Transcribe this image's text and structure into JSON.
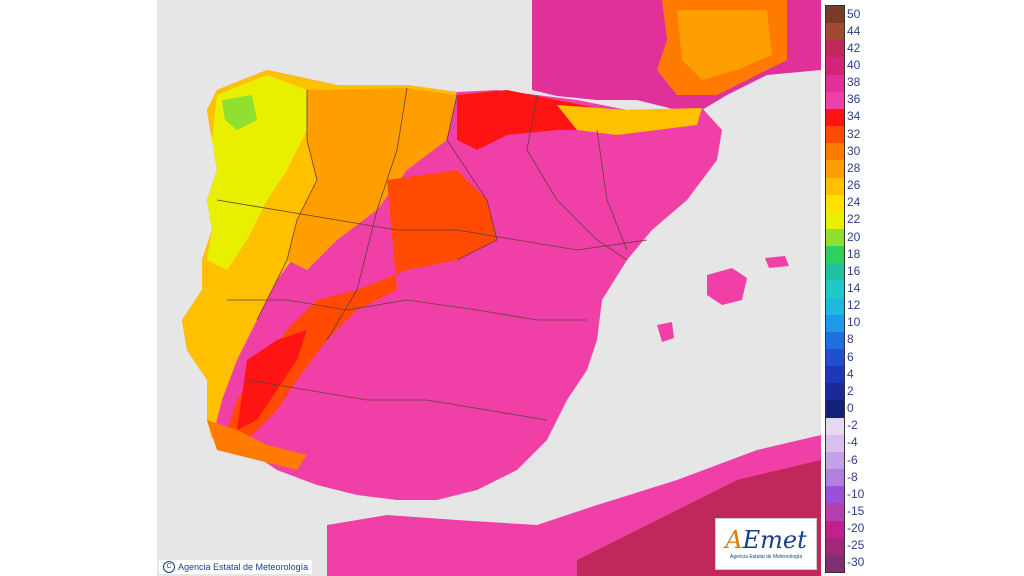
{
  "map": {
    "copyright_text": "Agencia Estatal de Meteorología",
    "logo": {
      "word_a": "A",
      "word_rest": "Emet",
      "subtitle": "Agencia Estatal de Meteorología"
    },
    "colors": {
      "sea": "#e6e6e6",
      "border": "#6a3b3b"
    }
  },
  "legend": {
    "items": [
      {
        "label": "50",
        "color": "#7a3a28"
      },
      {
        "label": "44",
        "color": "#a04a32"
      },
      {
        "label": "42",
        "color": "#c0285a"
      },
      {
        "label": "40",
        "color": "#d2257a"
      },
      {
        "label": "38",
        "color": "#e0309a"
      },
      {
        "label": "36",
        "color": "#f040a8"
      },
      {
        "label": "34",
        "color": "#ff1414"
      },
      {
        "label": "32",
        "color": "#ff4a00"
      },
      {
        "label": "30",
        "color": "#ff7a00"
      },
      {
        "label": "28",
        "color": "#ff9e00"
      },
      {
        "label": "26",
        "color": "#ffc000"
      },
      {
        "label": "24",
        "color": "#ffe000"
      },
      {
        "label": "22",
        "color": "#e8f000"
      },
      {
        "label": "20",
        "color": "#8fe030"
      },
      {
        "label": "18",
        "color": "#30d060"
      },
      {
        "label": "16",
        "color": "#20c0a0"
      },
      {
        "label": "14",
        "color": "#20c8c8"
      },
      {
        "label": "12",
        "color": "#20b8e0"
      },
      {
        "label": "10",
        "color": "#2098e8"
      },
      {
        "label": "8",
        "color": "#2070e0"
      },
      {
        "label": "6",
        "color": "#2050d0"
      },
      {
        "label": "4",
        "color": "#2038b8"
      },
      {
        "label": "2",
        "color": "#1c2a98"
      },
      {
        "label": "0",
        "color": "#14207a"
      },
      {
        "label": "-2",
        "color": "#e8d8f0"
      },
      {
        "label": "-4",
        "color": "#d8c0ee"
      },
      {
        "label": "-6",
        "color": "#c4a0e8"
      },
      {
        "label": "-8",
        "color": "#b080e0"
      },
      {
        "label": "-10",
        "color": "#9a50d8"
      },
      {
        "label": "-15",
        "color": "#b040b0"
      },
      {
        "label": "-20",
        "color": "#c02090"
      },
      {
        "label": "-25",
        "color": "#a02878"
      },
      {
        "label": "-30",
        "color": "#803070"
      }
    ]
  }
}
